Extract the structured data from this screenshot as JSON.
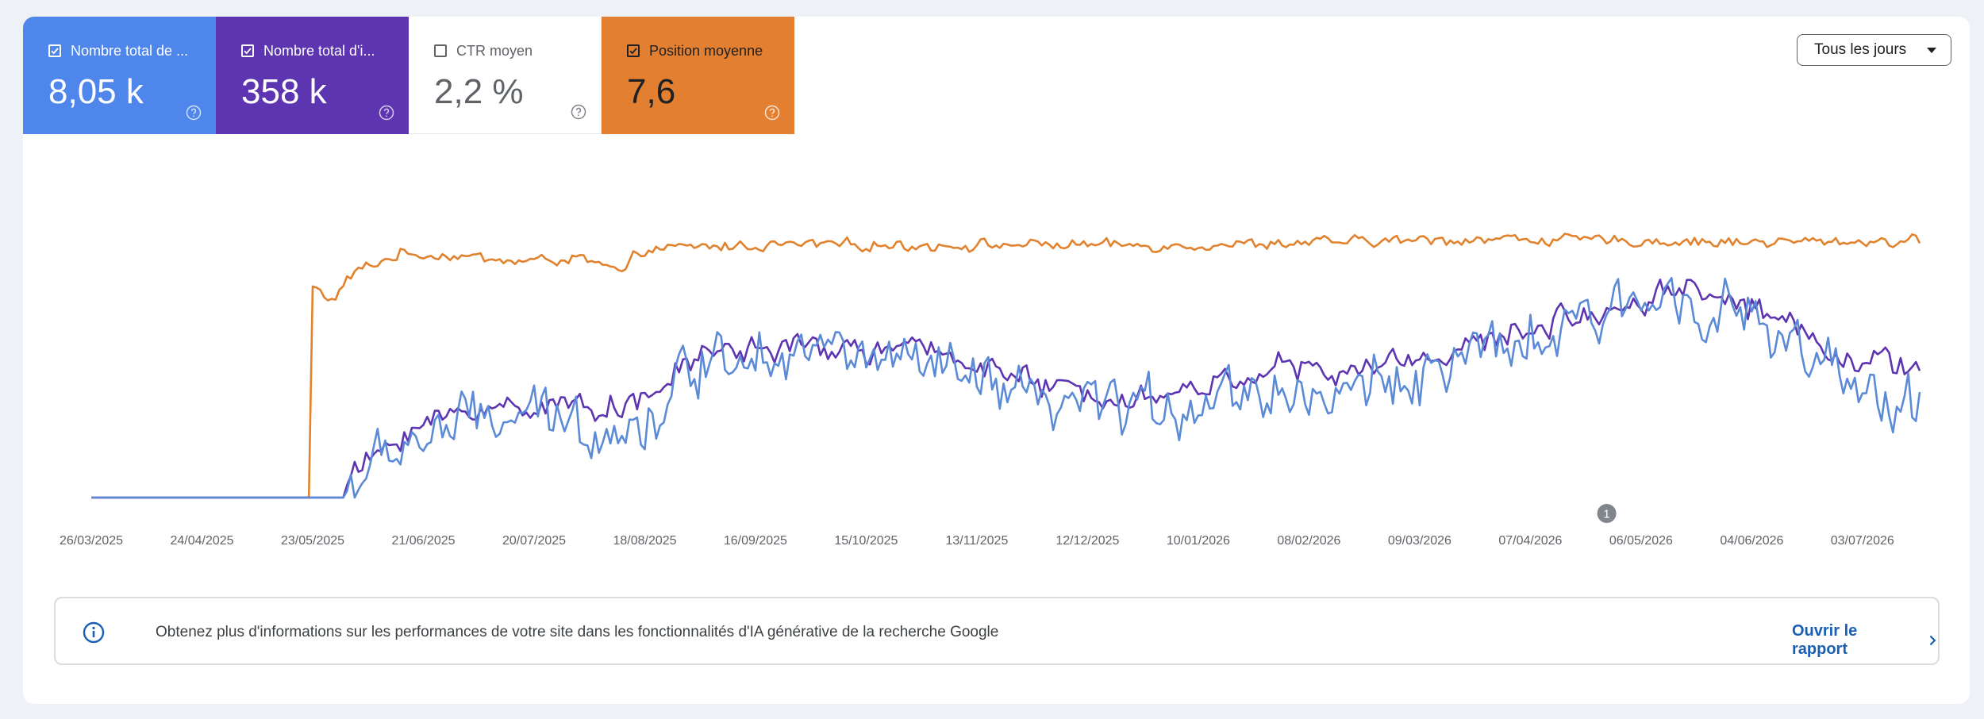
{
  "metrics": [
    {
      "label": "Nombre total de ...",
      "value": "8,05 k",
      "checked": true
    },
    {
      "label": "Nombre total d'i...",
      "value": "358 k",
      "checked": true
    },
    {
      "label": "CTR moyen",
      "value": "2,2 %",
      "checked": false
    },
    {
      "label": "Position moyenne",
      "value": "7,6",
      "checked": true
    }
  ],
  "date_filter": {
    "selected": "Tous les jours"
  },
  "chart_data": {
    "type": "line",
    "x_tick_labels": [
      "26/03/2025",
      "24/04/2025",
      "23/05/2025",
      "21/06/2025",
      "20/07/2025",
      "18/08/2025",
      "16/09/2025",
      "15/10/2025",
      "13/11/2025",
      "12/12/2025",
      "10/01/2026",
      "08/02/2026",
      "09/03/2026",
      "07/04/2026",
      "06/05/2026",
      "04/06/2026",
      "03/07/2026"
    ],
    "y_axis": "hidden (no tick labels shown)",
    "grid": false,
    "annotation_marker": {
      "label": "1",
      "date": "27/04/2026"
    },
    "series": [
      {
        "color": "#e0822e",
        "smoothing": 0.4,
        "noise": 6,
        "knots": [
          [
            "2025-03-26",
            0
          ],
          [
            "2025-05-22",
            0
          ],
          [
            "2025-05-23",
            183
          ],
          [
            "2025-05-28",
            171
          ],
          [
            "2025-06-03",
            196
          ],
          [
            "2025-06-15",
            212
          ],
          [
            "2025-07-01",
            210
          ],
          [
            "2025-07-15",
            205
          ],
          [
            "2025-08-01",
            208
          ],
          [
            "2025-08-13",
            194
          ],
          [
            "2025-08-16",
            214
          ],
          [
            "2025-09-01",
            218
          ],
          [
            "2025-10-01",
            220
          ],
          [
            "2025-11-01",
            219
          ],
          [
            "2025-12-01",
            220
          ],
          [
            "2026-01-01",
            219
          ],
          [
            "2026-02-01",
            221
          ],
          [
            "2026-03-01",
            223
          ],
          [
            "2026-04-01",
            225
          ],
          [
            "2026-05-01",
            223
          ],
          [
            "2026-06-01",
            222
          ],
          [
            "2026-07-18",
            223
          ]
        ]
      },
      {
        "color": "#5e35b1",
        "smoothing": 0.4,
        "noise": 14,
        "knots": [
          [
            "2025-03-26",
            0
          ],
          [
            "2025-05-24",
            0
          ],
          [
            "2025-06-01",
            15
          ],
          [
            "2025-06-15",
            55
          ],
          [
            "2025-07-01",
            75
          ],
          [
            "2025-07-15",
            80
          ],
          [
            "2025-08-01",
            80
          ],
          [
            "2025-08-18",
            82
          ],
          [
            "2025-09-01",
            125
          ],
          [
            "2025-09-16",
            130
          ],
          [
            "2025-10-01",
            130
          ],
          [
            "2025-10-15",
            128
          ],
          [
            "2025-11-01",
            128
          ],
          [
            "2025-11-13",
            118
          ],
          [
            "2025-12-01",
            95
          ],
          [
            "2025-12-15",
            90
          ],
          [
            "2026-01-01",
            88
          ],
          [
            "2026-01-15",
            100
          ],
          [
            "2026-02-01",
            115
          ],
          [
            "2026-02-15",
            105
          ],
          [
            "2026-03-01",
            118
          ],
          [
            "2026-03-15",
            125
          ],
          [
            "2026-04-01",
            140
          ],
          [
            "2026-04-15",
            155
          ],
          [
            "2026-05-01",
            165
          ],
          [
            "2026-05-15",
            185
          ],
          [
            "2026-06-01",
            170
          ],
          [
            "2026-06-15",
            150
          ],
          [
            "2026-07-01",
            118
          ],
          [
            "2026-07-18",
            115
          ]
        ]
      },
      {
        "color": "#5b8ad6",
        "smoothing": 0.4,
        "noise": 32,
        "knots": [
          [
            "2025-03-26",
            0
          ],
          [
            "2025-05-24",
            0
          ],
          [
            "2025-06-01",
            8
          ],
          [
            "2025-06-15",
            45
          ],
          [
            "2025-07-01",
            65
          ],
          [
            "2025-07-15",
            70
          ],
          [
            "2025-08-01",
            65
          ],
          [
            "2025-08-18",
            60
          ],
          [
            "2025-09-01",
            120
          ],
          [
            "2025-09-16",
            130
          ],
          [
            "2025-10-01",
            130
          ],
          [
            "2025-10-15",
            122
          ],
          [
            "2025-11-01",
            110
          ],
          [
            "2025-11-13",
            100
          ],
          [
            "2025-12-01",
            75
          ],
          [
            "2025-12-15",
            80
          ],
          [
            "2026-01-01",
            78
          ],
          [
            "2026-01-15",
            90
          ],
          [
            "2026-02-01",
            95
          ],
          [
            "2026-02-15",
            85
          ],
          [
            "2026-03-01",
            105
          ],
          [
            "2026-03-15",
            110
          ],
          [
            "2026-04-01",
            130
          ],
          [
            "2026-04-15",
            140
          ],
          [
            "2026-05-01",
            165
          ],
          [
            "2026-05-15",
            180
          ],
          [
            "2026-06-01",
            160
          ],
          [
            "2026-06-15",
            130
          ],
          [
            "2026-07-01",
            90
          ],
          [
            "2026-07-18",
            80
          ]
        ]
      }
    ]
  },
  "banner": {
    "message": "Obtenez plus d'informations sur les performances de votre site dans les fonctionnalités d'IA générative de la recherche Google",
    "link_label": "Ouvrir le rapport"
  }
}
